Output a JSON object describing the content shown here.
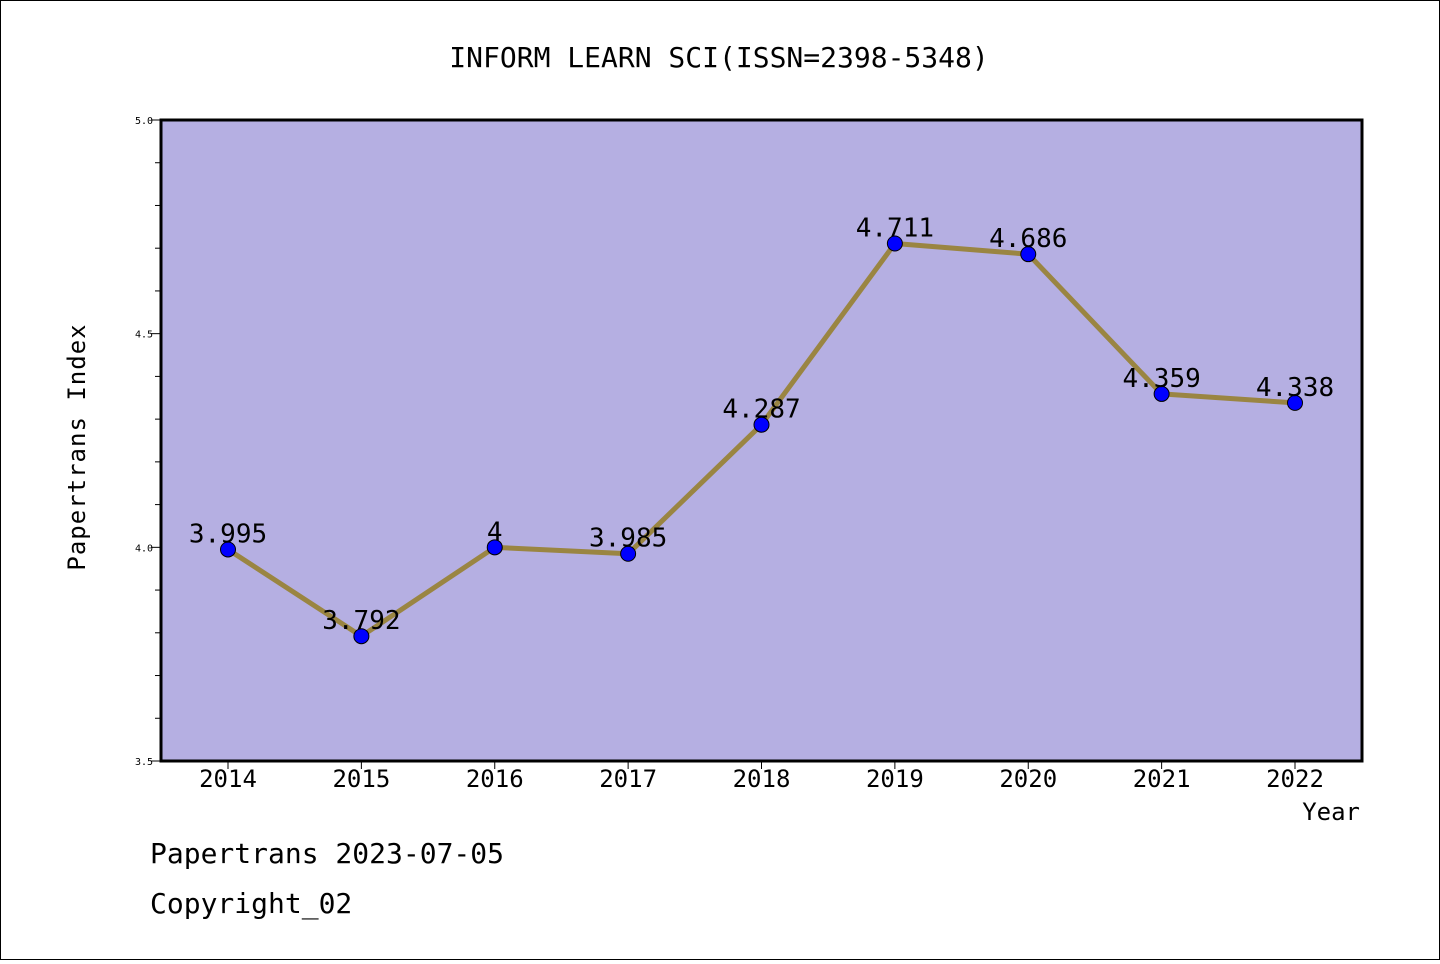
{
  "chart_data": {
    "type": "line",
    "title": "INFORM LEARN SCI(ISSN=2398-5348)",
    "xlabel": "Year",
    "ylabel": "Papertrans Index",
    "categories": [
      "2014",
      "2015",
      "2016",
      "2017",
      "2018",
      "2019",
      "2020",
      "2021",
      "2022"
    ],
    "values": [
      3.995,
      3.792,
      4,
      3.985,
      4.287,
      4.711,
      4.686,
      4.359,
      4.338
    ],
    "value_labels": [
      "3.995",
      "3.792",
      "4",
      "3.985",
      "4.287",
      "4.711",
      "4.686",
      "4.359",
      "4.338"
    ],
    "ylim": [
      3.5,
      5.0
    ],
    "yticks": [
      "3.5",
      "4.0",
      "4.5",
      "5.0"
    ],
    "grid": false,
    "legend": "none",
    "colors": {
      "plot_background": "#b5afe2",
      "line": "#9a8542",
      "marker": "#0000ff"
    }
  },
  "footer": {
    "line1": "Papertrans 2023-07-05",
    "line2": "Copyright_02"
  }
}
